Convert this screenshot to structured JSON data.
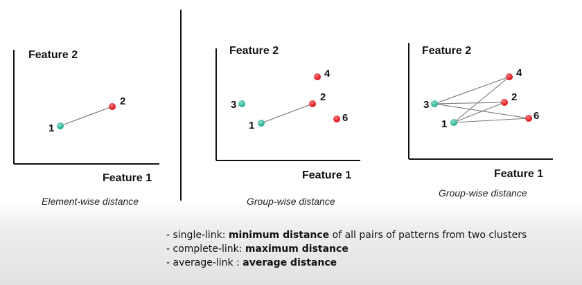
{
  "colors": {
    "green_point": "#1aa78c",
    "red_point": "#e0101a",
    "axis": "#111111",
    "connector": "#777777"
  },
  "panels": [
    {
      "ylabel": "Feature 2",
      "xlabel": "Feature 1",
      "caption": "Element-wise distance",
      "points": [
        {
          "label": "1",
          "color": "green"
        },
        {
          "label": "2",
          "color": "red"
        }
      ]
    },
    {
      "ylabel": "Feature 2",
      "xlabel": "Feature 1",
      "caption": "Group-wise distance",
      "points": [
        {
          "label": "3",
          "color": "green"
        },
        {
          "label": "1",
          "color": "green"
        },
        {
          "label": "4",
          "color": "red"
        },
        {
          "label": "2",
          "color": "red"
        },
        {
          "label": "6",
          "color": "red"
        }
      ]
    },
    {
      "ylabel": "Feature 2",
      "xlabel": "Feature 1",
      "caption": "Group-wise distance",
      "points": [
        {
          "label": "3",
          "color": "green"
        },
        {
          "label": "1",
          "color": "green"
        },
        {
          "label": "4",
          "color": "red"
        },
        {
          "label": "2",
          "color": "red"
        },
        {
          "label": "6",
          "color": "red"
        }
      ]
    }
  ],
  "notes": [
    {
      "prefix": "- single-link: ",
      "bold": "minimum distance",
      "suffix": " of all pairs of patterns from two clusters"
    },
    {
      "prefix": "- complete-link: ",
      "bold": "maximum distance",
      "suffix": ""
    },
    {
      "prefix": "- average-link : ",
      "bold": "average distance",
      "suffix": ""
    }
  ]
}
